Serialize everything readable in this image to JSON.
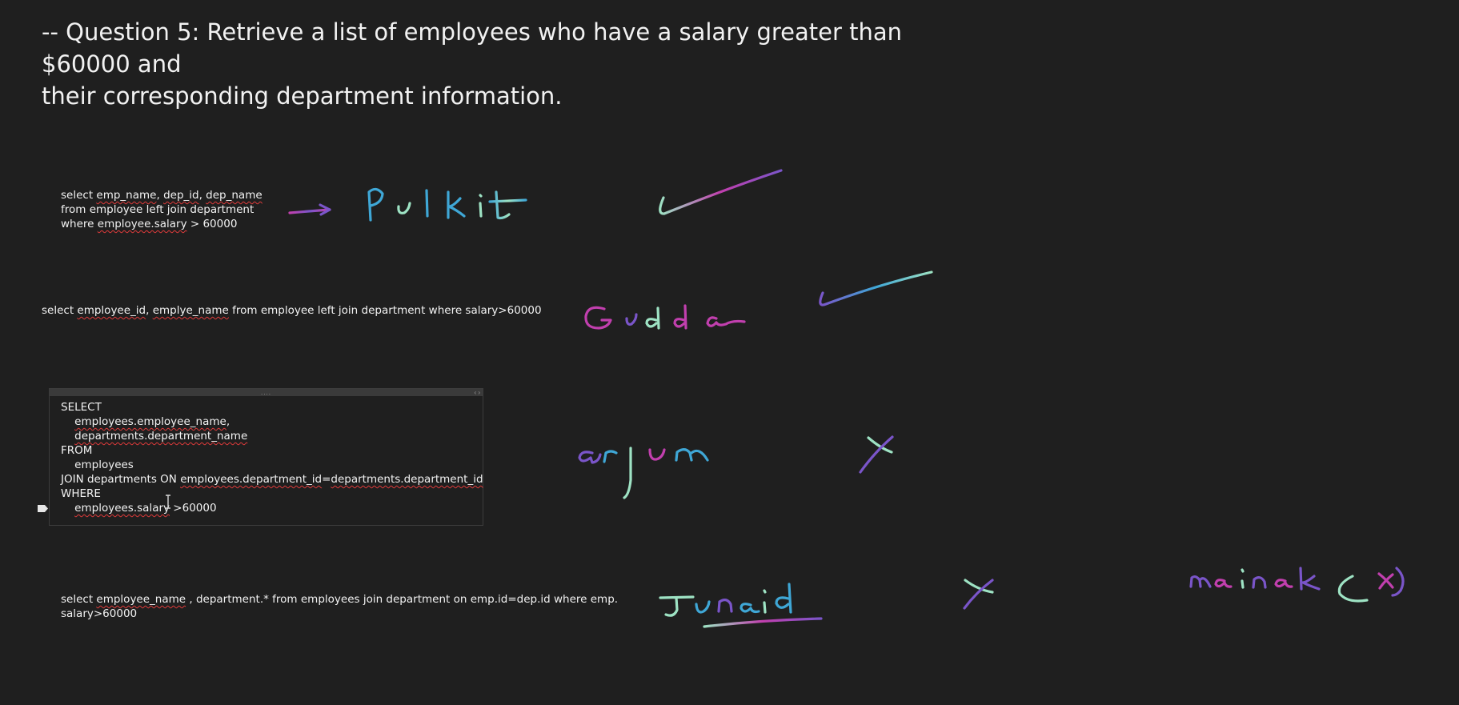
{
  "title": {
    "line1": "-- Question 5: Retrieve a list of employees who have a salary greater than $60000 and",
    "line2": "their corresponding department information."
  },
  "answer1": {
    "line1": [
      "select ",
      "emp_name",
      ", ",
      "dep_id",
      ", ",
      "dep_name",
      ""
    ],
    "line2": "from employee left join department",
    "line3": [
      "where ",
      "employee.salary",
      " > 60000"
    ]
  },
  "answer2": {
    "parts": [
      "select ",
      "employee_id",
      ", ",
      "emplye_name",
      " from employee left join department where salary>60000"
    ]
  },
  "answer3": {
    "lines": [
      "SELECT",
      [
        "    ",
        "employees.employee_name",
        ","
      ],
      [
        "    ",
        "departments.department_name",
        ""
      ],
      "FROM",
      "    employees",
      [
        "JOIN departments ON ",
        "employees.department_id",
        "=",
        "departments.department_id",
        ""
      ],
      "WHERE",
      [
        "    ",
        "employees.salary",
        " >",
        "60000"
      ]
    ]
  },
  "answer4": {
    "line1": [
      "select ",
      "employee_name",
      " , department.* from employees join department on emp.id=dep.id where emp."
    ],
    "line2": "salary>60000"
  },
  "container": {
    "handle": "....",
    "resize": "‹ ›"
  },
  "handwriting": {
    "names": [
      "Pulkit",
      "Gudda",
      "arjun",
      "Junaid",
      "mainak(x)"
    ],
    "marks": [
      "check",
      "check",
      "cross",
      "cross"
    ]
  },
  "colors": {
    "background": "#1f1f1f",
    "text": "#f2f2f2",
    "spellcheck": "#e03a3a",
    "ink_cyan": "#3fa7d6",
    "ink_magenta": "#c13fae",
    "ink_mint": "#9ee3c4",
    "ink_purple": "#7a55c9"
  }
}
